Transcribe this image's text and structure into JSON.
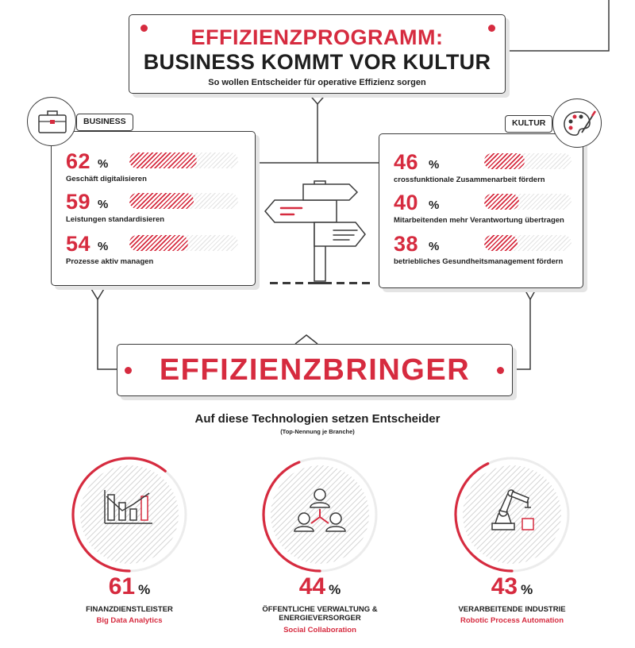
{
  "header": {
    "title_line1": "EFFIZIENZPROGRAMM:",
    "title_line2": "BUSINESS KOMMT VOR KULTUR",
    "subtitle": "So wollen Entscheider für operative Effizienz sorgen"
  },
  "business": {
    "tag": "BUSINESS",
    "icon": "briefcase-icon"
  },
  "kultur": {
    "tag": "KULTUR",
    "icon": "palette-icon"
  },
  "effizienzbringer": {
    "title": "EFFIZIENZBRINGER"
  },
  "technologies": {
    "heading": "Auf diese Technologien setzen Entscheider",
    "subheading": "(Top-Nennung je Branche)"
  },
  "colors": {
    "accent": "#d62b3f",
    "text": "#1e1e1e",
    "hatch": "#e6e6e6"
  },
  "chart_data": [
    {
      "type": "bar",
      "categories": [
        "Geschäft digitalisieren",
        "Leistungen standardisieren",
        "Prozesse aktiv managen"
      ],
      "values": [
        62,
        59,
        54
      ],
      "value_labels": [
        "62",
        "59",
        "54"
      ],
      "unit": "%",
      "ylim": [
        0,
        100
      ]
    },
    {
      "type": "bar",
      "categories": [
        "crossfunktionale Zusammenarbeit fördern",
        "Mitarbeitenden mehr Verantwortung übertragen",
        "betriebliches Gesundheitsmanagement fördern"
      ],
      "values": [
        46,
        40,
        38
      ],
      "value_labels": [
        "46",
        "40",
        "38"
      ],
      "unit": "%",
      "ylim": [
        0,
        100
      ]
    },
    {
      "type": "pie",
      "unit": "%",
      "items": [
        {
          "sector": "FINANZDIENSTLEISTER",
          "technology": "Big Data Analytics",
          "value": 61,
          "value_label": "61",
          "icon": "bar-chart-icon"
        },
        {
          "sector": "ÖFFENTLICHE VERWALTUNG & ENERGIEVERSORGER",
          "sector_line1": "ÖFFENTLICHE VERWALTUNG &",
          "sector_line2": "ENERGIEVERSORGER",
          "technology": "Social Collaboration",
          "value": 44,
          "value_label": "44",
          "icon": "people-network-icon"
        },
        {
          "sector": "VERARBEITENDE INDUSTRIE",
          "technology": "Robotic Process Automation",
          "value": 43,
          "value_label": "43",
          "icon": "robot-arm-icon"
        }
      ]
    }
  ]
}
